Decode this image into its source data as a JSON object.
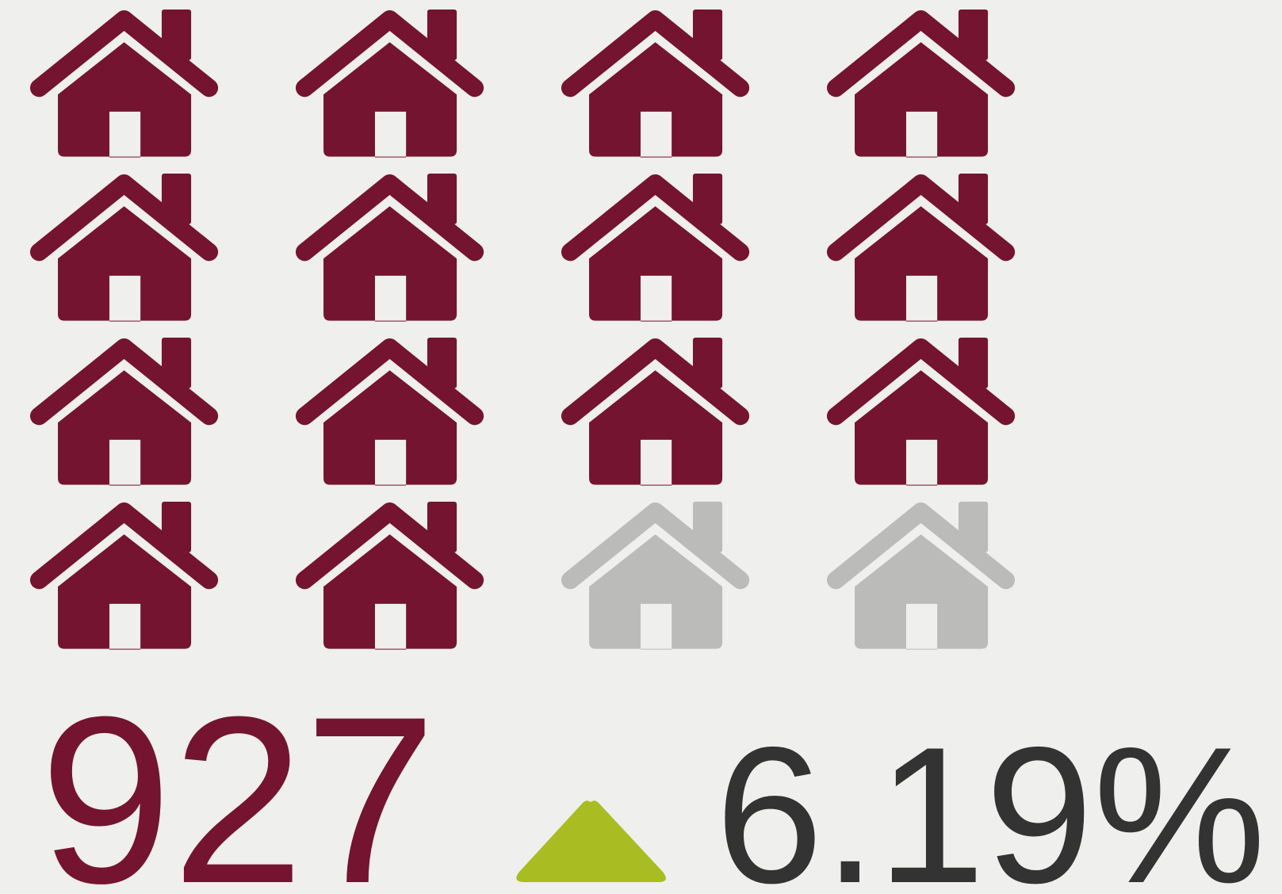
{
  "icons": {
    "total": 16,
    "filled": 14,
    "columns": 4,
    "filled_color": "#741430",
    "empty_color": "#bbbbba"
  },
  "value": 927,
  "change": {
    "direction": "up",
    "color": "#a9bd22",
    "label": "6.19%"
  }
}
